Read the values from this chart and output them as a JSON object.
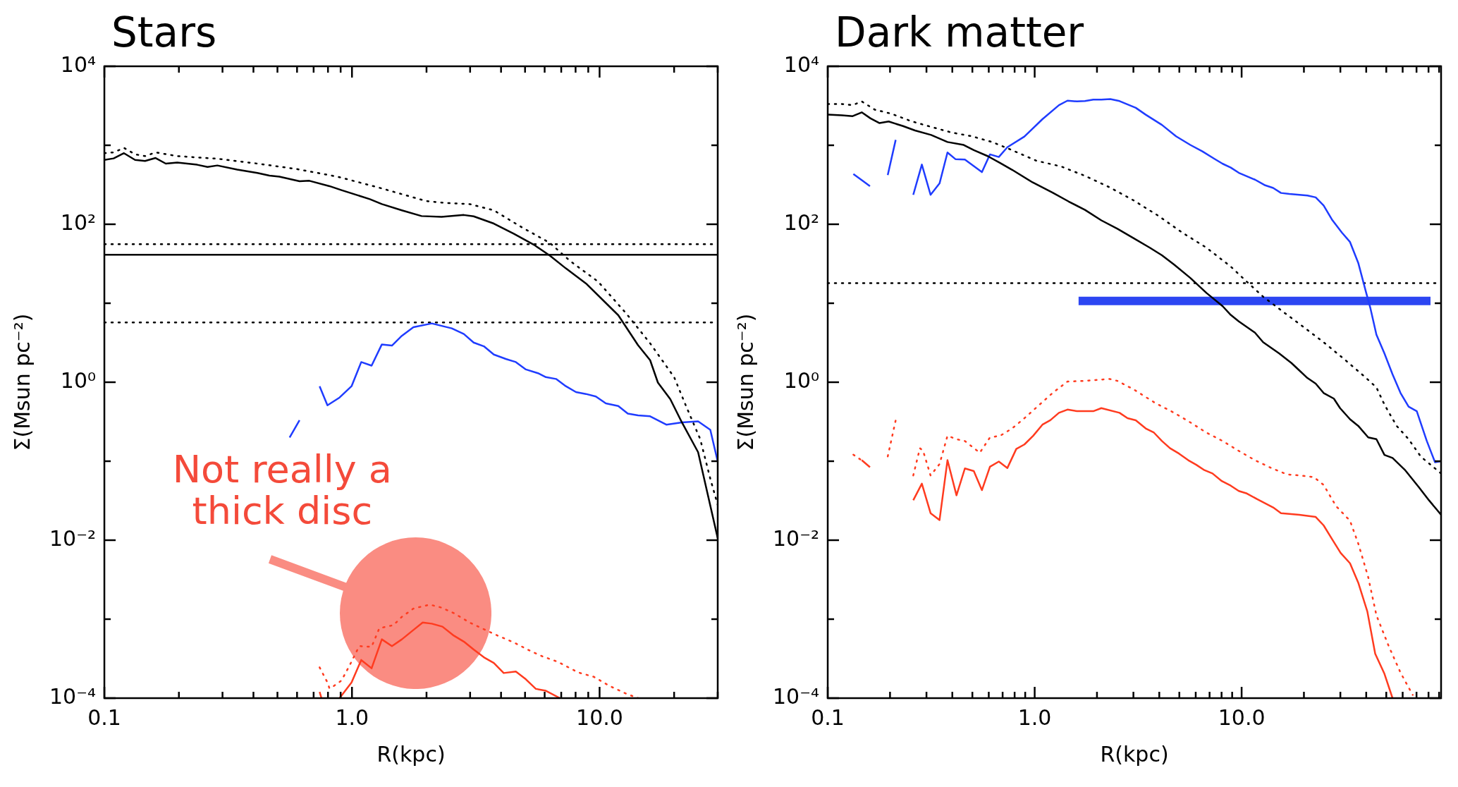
{
  "chart_data": [
    {
      "type": "line",
      "title": "Stars",
      "xlabel": "R(kpc)",
      "ylabel": "Σ(Msun pc⁻²)",
      "log": "xy",
      "xlim": [
        0.1,
        30
      ],
      "ylim": [
        0.0001,
        10000
      ],
      "xticks": [
        0.1,
        {
          "value": 0.2,
          "label": null
        },
        {
          "value": 0.3,
          "label": null
        },
        {
          "value": 0.4,
          "label": null
        },
        {
          "value": 0.5,
          "label": null
        },
        {
          "value": 0.6,
          "label": null
        },
        {
          "value": 0.7,
          "label": null
        },
        {
          "value": 0.8,
          "label": null
        },
        {
          "value": 0.9,
          "label": null
        },
        {
          "value": 1,
          "label": "1.0"
        },
        {
          "value": 2,
          "label": null
        },
        {
          "value": 3,
          "label": null
        },
        {
          "value": 4,
          "label": null
        },
        {
          "value": 5,
          "label": null
        },
        {
          "value": 6,
          "label": null
        },
        {
          "value": 7,
          "label": null
        },
        {
          "value": 8,
          "label": null
        },
        {
          "value": 9,
          "label": null
        },
        {
          "value": 10,
          "label": "10.0"
        },
        {
          "value": 20,
          "label": null
        },
        {
          "value": 30,
          "label": null
        }
      ],
      "yticks": [
        {
          "value": 0.0001,
          "label": "10⁻⁴"
        },
        {
          "value": 0.001,
          "label": null
        },
        {
          "value": 0.01,
          "label": "10⁻²"
        },
        {
          "value": 0.1,
          "label": null
        },
        {
          "value": 1,
          "label": "10⁰"
        },
        {
          "value": 10,
          "label": null
        },
        {
          "value": 100,
          "label": "10²"
        },
        {
          "value": 1000,
          "label": null
        },
        {
          "value": 10000,
          "label": "10⁴"
        }
      ],
      "series": [
        {
          "color": "#000000",
          "line_style": "solid",
          "x": [
            0.1,
            0.109,
            0.12,
            0.133,
            0.146,
            0.161,
            0.177,
            0.197,
            0.237,
            0.261,
            0.286,
            0.344,
            0.415,
            0.464,
            0.509,
            0.614,
            0.673,
            0.811,
            0.907,
            1.18,
            1.32,
            1.59,
            1.91,
            2.3,
            2.83,
            3.1,
            3.74,
            4.5,
            5.43,
            6.3,
            7.31,
            8.81,
            11.9,
            14.3,
            16,
            17.2,
            19.3,
            21.5,
            25,
            30
          ],
          "values": [
            653,
            682,
            794,
            653,
            632,
            690,
            586,
            605,
            567,
            531,
            555,
            492,
            446,
            413,
            400,
            351,
            355,
            304,
            270,
            208,
            180,
            150,
            127,
            124,
            131,
            126,
            102,
            76,
            55,
            40,
            27.6,
            17.8,
            7.05,
            2.94,
            1.9,
            0.99,
            0.61,
            0.31,
            0.13,
            0.0106
          ]
        },
        {
          "color": "#000000",
          "line_style": "dotted",
          "x": [
            0.1,
            0.109,
            0.12,
            0.133,
            0.146,
            0.161,
            0.197,
            0.286,
            0.415,
            0.603,
            0.875,
            1.27,
            1.99,
            2.39,
            2.99,
            3.74,
            4.85,
            6.3,
            7.59,
            9.86,
            12.8,
            16,
            20,
            22.4,
            25.5,
            28,
            30
          ],
          "values": [
            794,
            813,
            927,
            769,
            729,
            813,
            729,
            675,
            586,
            498,
            400,
            294,
            197,
            186,
            180,
            150,
            91.6,
            58,
            34.4,
            18.8,
            7.45,
            3.11,
            1.16,
            0.49,
            0.19,
            0.06,
            0.028
          ]
        },
        {
          "color": "#1f3cff",
          "line_style": "solid",
          "x": [
            0.56,
            0.614,
            null,
            0.74,
            0.796,
            0.891,
            0.996,
            1.09,
            1.2,
            1.32,
            1.45,
            1.59,
            1.77,
            2.1,
            2.53,
            2.83,
            3.1,
            3.41,
            3.74,
            4.18,
            4.59,
            5.04,
            5.64,
            6.07,
            6.67,
            7.31,
            8.03,
            8.81,
            9.66,
            10.6,
            11.9,
            13,
            14.3,
            16,
            18.6,
            21.5,
            25,
            28,
            30
          ],
          "values": [
            0.2,
            0.33,
            null,
            0.89,
            0.51,
            0.64,
            0.89,
            1.8,
            1.62,
            3.01,
            2.91,
            3.87,
            4.98,
            5.55,
            4.81,
            4.08,
            3.18,
            2.85,
            2.24,
            1.97,
            1.8,
            1.45,
            1.3,
            1.16,
            1.1,
            0.89,
            0.75,
            0.71,
            0.66,
            0.54,
            0.5,
            0.4,
            0.38,
            0.37,
            0.29,
            0.31,
            0.32,
            0.25,
            0.099
          ]
        },
        {
          "color": "#ff3b1f",
          "line_style": "solid",
          "x": [
            0.74,
            0.753,
            null,
            0.891,
            0.996,
            1.09,
            1.2,
            1.32,
            1.45,
            1.59,
            1.77,
            1.93,
            2.1,
            2.32,
            2.58,
            2.83,
            3.1,
            3.41,
            3.74,
            4.1,
            4.59,
            5.04,
            5.53,
            6.07,
            6.92
          ],
          "values": [
            0.00012,
            0.0001,
            null,
            0.0001,
            0.000158,
            0.000304,
            0.000239,
            0.000555,
            0.000456,
            0.000555,
            0.000729,
            0.000906,
            0.000877,
            0.000804,
            0.000618,
            0.00052,
            0.000413,
            0.000329,
            0.000279,
            0.000208,
            0.000217,
            0.000173,
            0.000131,
            0.000124,
            0.0001
          ]
        },
        {
          "color": "#ff3b1f",
          "line_style": "dotted",
          "x": [
            0.74,
            0.796,
            0.811,
            0.843,
            0.907,
            0.977,
            1.07,
            1.2,
            1.29,
            1.47,
            1.59,
            1.77,
            2.06,
            2.3,
            2.58,
            2.99,
            3.34,
            3.88,
            4.5,
            5.22,
            5.85,
            6.79,
            8.18,
            9.49,
            11,
            12.8,
            14.3
          ],
          "values": [
            0.000245,
            0.000158,
            0.000133,
            0.000142,
            0.000167,
            0.000258,
            0.000456,
            0.000446,
            0.000769,
            0.000839,
            0.00107,
            0.00136,
            0.00153,
            0.0014,
            0.00119,
            0.000906,
            0.000769,
            0.000618,
            0.000508,
            0.0004,
            0.00034,
            0.000288,
            0.000212,
            0.000186,
            0.000142,
            0.000114,
            0.0001
          ]
        }
      ],
      "ref_lines": [
        {
          "axis": "y",
          "value": 56,
          "color": "#000000",
          "line_style": "dotted"
        },
        {
          "axis": "y",
          "value": 41,
          "color": "#000000",
          "line_style": "solid"
        },
        {
          "axis": "y",
          "value": 5.7,
          "color": "#000000",
          "line_style": "dotted"
        }
      ],
      "annotations": [
        "Not really a thick disc"
      ]
    },
    {
      "type": "line",
      "title": "Dark matter",
      "xlabel": "R(kpc)",
      "ylabel": "Σ(Msun pc⁻²)",
      "log": "xy",
      "xlim": [
        0.1,
        92
      ],
      "ylim": [
        0.0001,
        10000
      ],
      "xticks": [
        0.1,
        {
          "value": 0.2,
          "label": null
        },
        {
          "value": 0.3,
          "label": null
        },
        {
          "value": 0.4,
          "label": null
        },
        {
          "value": 0.5,
          "label": null
        },
        {
          "value": 0.6,
          "label": null
        },
        {
          "value": 0.7,
          "label": null
        },
        {
          "value": 0.8,
          "label": null
        },
        {
          "value": 0.9,
          "label": null
        },
        {
          "value": 1,
          "label": "1.0"
        },
        {
          "value": 2,
          "label": null
        },
        {
          "value": 3,
          "label": null
        },
        {
          "value": 4,
          "label": null
        },
        {
          "value": 5,
          "label": null
        },
        {
          "value": 6,
          "label": null
        },
        {
          "value": 7,
          "label": null
        },
        {
          "value": 8,
          "label": null
        },
        {
          "value": 9,
          "label": null
        },
        {
          "value": 10,
          "label": "10.0"
        },
        {
          "value": 20,
          "label": null
        },
        {
          "value": 30,
          "label": null
        },
        {
          "value": 40,
          "label": null
        },
        {
          "value": 50,
          "label": null
        },
        {
          "value": 60,
          "label": null
        },
        {
          "value": 70,
          "label": null
        },
        {
          "value": 80,
          "label": null
        },
        {
          "value": 90,
          "label": null
        }
      ],
      "yticks": [
        {
          "value": 0.0001,
          "label": "10⁻⁴"
        },
        {
          "value": 0.001,
          "label": null
        },
        {
          "value": 0.01,
          "label": "10⁻²"
        },
        {
          "value": 0.1,
          "label": null
        },
        {
          "value": 1,
          "label": "10⁰"
        },
        {
          "value": 10,
          "label": null
        },
        {
          "value": 100,
          "label": "10²"
        },
        {
          "value": 1000,
          "label": null
        },
        {
          "value": 10000,
          "label": "10⁴"
        }
      ],
      "series": [
        {
          "color": "#000000",
          "line_style": "solid",
          "x": [
            0.1,
            0.117,
            0.132,
            0.146,
            0.161,
            0.178,
            0.197,
            0.231,
            0.264,
            0.316,
            0.379,
            0.454,
            0.508,
            0.594,
            0.681,
            0.778,
            0.975,
            1.22,
            1.46,
            1.75,
            2.1,
            2.51,
            3.01,
            3.6,
            4.12,
            4.72,
            5.65,
            6.76,
            8.1,
            8.86,
            9.69,
            11.6,
            12.7,
            15.2,
            17.4,
            19,
            20.8,
            22.8,
            24.9,
            27.9,
            29.9,
            33.4,
            36.6,
            40.9,
            44.8,
            49,
            53.6,
            61.4,
            71.8,
            80.4,
            92
          ],
          "values": [
            2440,
            2390,
            2340,
            2610,
            2190,
            1910,
            2000,
            1750,
            1540,
            1350,
            1100,
            1010,
            867,
            727,
            596,
            489,
            340,
            252,
            194,
            152,
            112,
            87.7,
            66.5,
            50.5,
            40.5,
            30.8,
            20.9,
            13.5,
            9.16,
            7.11,
            5.89,
            4.24,
            3.21,
            2.31,
            1.75,
            1.41,
            1.13,
            0.96,
            0.73,
            0.62,
            0.47,
            0.34,
            0.28,
            0.2,
            0.19,
            0.12,
            0.11,
            0.078,
            0.047,
            0.032,
            0.021
          ]
        },
        {
          "color": "#000000",
          "line_style": "dotted",
          "x": [
            0.1,
            0.117,
            0.132,
            0.146,
            0.169,
            0.202,
            0.253,
            0.316,
            0.397,
            0.497,
            0.622,
            0.778,
            1.02,
            1.34,
            1.75,
            2.3,
            3.01,
            3.94,
            5.16,
            6.76,
            8.86,
            10.6,
            12.7,
            15.9,
            19.9,
            24.9,
            31.3,
            39.1,
            44.8,
            49,
            56.1,
            64.1,
            73.5,
            92
          ],
          "values": [
            3330,
            3330,
            3220,
            3590,
            2820,
            2520,
            2020,
            1710,
            1450,
            1300,
            1100,
            867,
            637,
            540,
            410,
            294,
            200,
            129,
            78.5,
            50.5,
            29.1,
            18.7,
            12.1,
            7.76,
            5.0,
            3.21,
            1.96,
            1.19,
            0.86,
            0.52,
            0.28,
            0.19,
            0.114,
            0.07
          ]
        },
        {
          "color": "#1f3cff",
          "line_style": "solid",
          "x": [
            0.133,
            0.16,
            null,
            0.195,
            0.213,
            null,
            0.259,
            0.285,
            0.314,
            0.347,
            0.379,
            0.415,
            0.46,
            0.556,
            0.608,
            0.671,
            0.738,
            0.892,
            1.09,
            1.31,
            1.44,
            1.6,
            1.75,
            1.92,
            2.1,
            2.32,
            2.57,
            3.08,
            3.44,
            4.12,
            4.82,
            5.65,
            6.46,
            7.39,
            8.1,
            8.86,
            9.69,
            11.6,
            13,
            14.2,
            15.5,
            17,
            20.8,
            22.8,
            24.9,
            27.3,
            30.5,
            33.4,
            36.6,
            40,
            41.9,
            44.8,
            49,
            53.6,
            58.6,
            64.1,
            70.2,
            78.5,
            86,
            92
          ],
          "values": [
            433,
            304,
            null,
            419,
            1170,
            null,
            236,
            570,
            236,
            329,
            811,
            665,
            658,
            457,
            767,
            711,
            946,
            1290,
            2140,
            3220,
            3670,
            3590,
            3630,
            3790,
            3790,
            3840,
            3630,
            2980,
            2440,
            1810,
            1300,
            1010,
            838,
            673,
            583,
            522,
            448,
            367,
            311,
            288,
            249,
            242,
            231,
            219,
            173,
            115,
            78.5,
            59.6,
            32.5,
            13.5,
            8.67,
            4.01,
            2.31,
            1.26,
            0.73,
            0.49,
            0.43,
            0.18,
            0.097,
            0.1
          ]
        },
        {
          "color": "#2c46f2",
          "line_style": "solid",
          "x": [
            1.63,
            81.8
          ],
          "values": [
            10.7,
            10.7
          ]
        },
        {
          "color": "#ff3b1f",
          "line_style": "solid",
          "x": [
            0.146,
            0.16,
            null,
            0.259,
            0.285,
            0.314,
            0.347,
            0.379,
            0.419,
            0.46,
            0.508,
            0.556,
            0.608,
            0.671,
            0.738,
            0.815,
            0.892,
            0.984,
            1.09,
            1.19,
            1.31,
            1.44,
            1.6,
            1.92,
            2.1,
            2.57,
            2.81,
            3.08,
            3.44,
            3.77,
            4.12,
            4.51,
            4.98,
            5.52,
            6.04,
            6.61,
            7.23,
            8.02,
            8.86,
            9.69,
            10.6,
            11.9,
            14.2,
            15.5,
            17,
            19,
            22.8,
            24.9,
            27.3,
            30.1,
            33.4,
            36.6,
            40.5,
            44.2,
            49,
            53.6
          ],
          "values": [
            0.103,
            0.084,
            null,
            0.032,
            0.052,
            0.022,
            0.018,
            0.103,
            0.037,
            0.081,
            0.075,
            0.043,
            0.085,
            0.099,
            0.082,
            0.143,
            0.163,
            0.21,
            0.29,
            0.33,
            0.41,
            0.45,
            0.43,
            0.43,
            0.47,
            0.41,
            0.35,
            0.33,
            0.26,
            0.23,
            0.18,
            0.146,
            0.125,
            0.103,
            0.09,
            0.077,
            0.07,
            0.056,
            0.049,
            0.042,
            0.039,
            0.033,
            0.026,
            0.022,
            0.0215,
            0.021,
            0.0197,
            0.0154,
            0.0104,
            0.0069,
            0.0051,
            0.0029,
            0.00125,
            0.000365,
            0.000203,
            0.0001
          ]
        },
        {
          "color": "#ff3b1f",
          "line_style": "dotted",
          "x": [
            0.133,
            0.144,
            null,
            0.195,
            0.213,
            null,
            0.259,
            0.279,
            0.289,
            0.314,
            0.347,
            0.379,
            0.419,
            0.46,
            0.543,
            0.608,
            0.681,
            0.778,
            0.892,
            1.02,
            1.22,
            1.44,
            1.75,
            2.3,
            2.51,
            3.01,
            3.44,
            3.85,
            4.72,
            5.65,
            6.76,
            8.1,
            9.69,
            11.6,
            13.9,
            16.6,
            19,
            22.3,
            24.9,
            28.6,
            33.4,
            36.6,
            40.9,
            44.8,
            51.3,
            58.6,
            67.1
          ],
          "values": [
            0.121,
            0.105,
            null,
            0.115,
            0.33,
            null,
            0.066,
            0.146,
            0.135,
            0.066,
            0.092,
            0.21,
            0.19,
            0.18,
            0.128,
            0.2,
            0.21,
            0.26,
            0.35,
            0.48,
            0.73,
            1.02,
            1.04,
            1.1,
            1.04,
            0.81,
            0.65,
            0.54,
            0.41,
            0.31,
            0.23,
            0.18,
            0.135,
            0.103,
            0.082,
            0.068,
            0.066,
            0.063,
            0.05,
            0.027,
            0.0176,
            0.0091,
            0.0034,
            0.00112,
            0.00046,
            0.00021,
            0.00011
          ]
        }
      ],
      "ref_lines": [
        {
          "axis": "y",
          "value": 18,
          "color": "#000000",
          "line_style": "dotted"
        }
      ]
    }
  ]
}
